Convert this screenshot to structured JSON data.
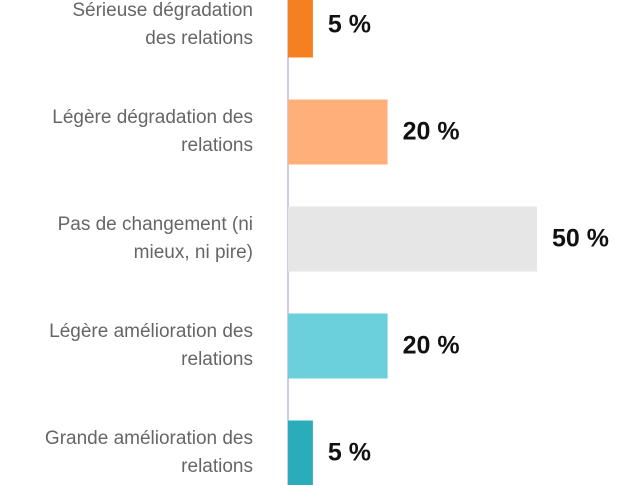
{
  "chart_data": {
    "type": "bar",
    "orientation": "horizontal",
    "categories": [
      "Sérieuse dégradation\ndes relations",
      "Légère dégradation des\nrelations",
      "Pas de changement (ni\nmieux, ni pire)",
      "Légère amélioration des\nrelations",
      "Grande amélioration des\nrelations"
    ],
    "values": [
      5,
      20,
      50,
      20,
      5
    ],
    "value_labels": [
      "5 %",
      "20 %",
      "50 %",
      "20 %",
      "5 %"
    ],
    "colors": [
      "#f5801f",
      "#ffaf7a",
      "#e6e6e6",
      "#6ccfdc",
      "#2aacbb"
    ]
  }
}
